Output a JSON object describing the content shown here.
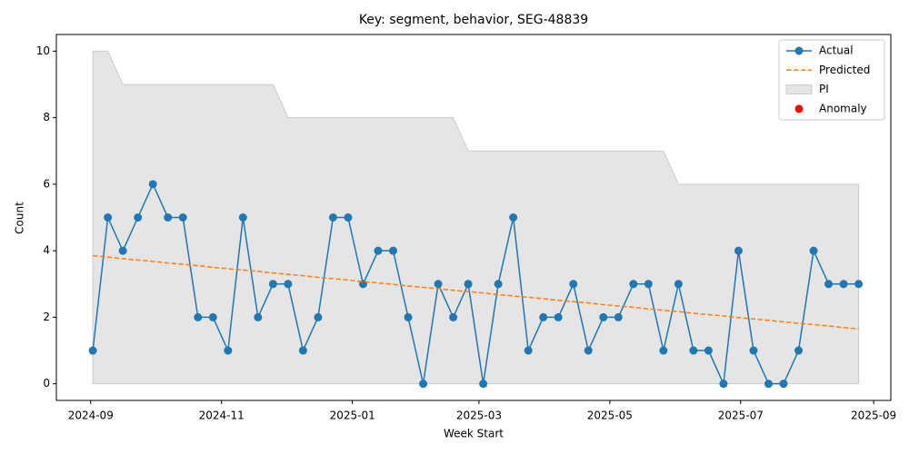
{
  "chart_data": {
    "type": "line",
    "title": "Key: segment, behavior, SEG-48839",
    "xlabel": "Week Start",
    "ylabel": "Count",
    "x": [
      "2024-09-02",
      "2024-09-09",
      "2024-09-16",
      "2024-09-23",
      "2024-09-30",
      "2024-10-07",
      "2024-10-14",
      "2024-10-21",
      "2024-10-28",
      "2024-11-04",
      "2024-11-11",
      "2024-11-18",
      "2024-11-25",
      "2024-12-02",
      "2024-12-09",
      "2024-12-16",
      "2024-12-23",
      "2024-12-30",
      "2025-01-06",
      "2025-01-13",
      "2025-01-20",
      "2025-01-27",
      "2025-02-03",
      "2025-02-10",
      "2025-02-17",
      "2025-02-24",
      "2025-03-03",
      "2025-03-10",
      "2025-03-17",
      "2025-03-24",
      "2025-03-31",
      "2025-04-07",
      "2025-04-14",
      "2025-04-21",
      "2025-04-28",
      "2025-05-05",
      "2025-05-12",
      "2025-05-19",
      "2025-05-26",
      "2025-06-02",
      "2025-06-09",
      "2025-06-16",
      "2025-06-23",
      "2025-06-30",
      "2025-07-07",
      "2025-07-14",
      "2025-07-21",
      "2025-07-28",
      "2025-08-04",
      "2025-08-11",
      "2025-08-18",
      "2025-08-25"
    ],
    "series": [
      {
        "name": "Actual",
        "color": "#1f77b4",
        "style": "solid",
        "marker": true,
        "values": [
          1,
          5,
          4,
          5,
          6,
          5,
          5,
          2,
          2,
          1,
          5,
          2,
          3,
          3,
          1,
          2,
          5,
          5,
          3,
          4,
          4,
          2,
          0,
          3,
          2,
          3,
          0,
          3,
          5,
          1,
          2,
          2,
          3,
          1,
          2,
          2,
          3,
          3,
          1,
          3,
          1,
          1,
          0,
          4,
          1,
          0,
          0,
          1,
          4,
          3,
          3,
          3
        ]
      },
      {
        "name": "Predicted",
        "color": "#ff7f0e",
        "style": "dashed",
        "marker": false,
        "values": [
          3.85,
          3.81,
          3.76,
          3.72,
          3.68,
          3.63,
          3.59,
          3.55,
          3.5,
          3.46,
          3.42,
          3.38,
          3.33,
          3.29,
          3.25,
          3.2,
          3.16,
          3.12,
          3.07,
          3.03,
          2.99,
          2.94,
          2.9,
          2.86,
          2.81,
          2.77,
          2.73,
          2.68,
          2.64,
          2.6,
          2.56,
          2.51,
          2.47,
          2.43,
          2.38,
          2.34,
          2.3,
          2.25,
          2.21,
          2.17,
          2.12,
          2.08,
          2.04,
          1.99,
          1.95,
          1.91,
          1.86,
          1.82,
          1.78,
          1.74,
          1.69,
          1.65
        ]
      }
    ],
    "band": {
      "name": "PI",
      "color": "#e5e5e5",
      "edge": "#cccccc",
      "lower": [
        0,
        0,
        0,
        0,
        0,
        0,
        0,
        0,
        0,
        0,
        0,
        0,
        0,
        0,
        0,
        0,
        0,
        0,
        0,
        0,
        0,
        0,
        0,
        0,
        0,
        0,
        0,
        0,
        0,
        0,
        0,
        0,
        0,
        0,
        0,
        0,
        0,
        0,
        0,
        0,
        0,
        0,
        0,
        0,
        0,
        0,
        0,
        0,
        0,
        0,
        0,
        0
      ],
      "upper": [
        10,
        10,
        9,
        9,
        9,
        9,
        9,
        9,
        9,
        9,
        9,
        9,
        9,
        8,
        8,
        8,
        8,
        8,
        8,
        8,
        8,
        8,
        8,
        8,
        8,
        7,
        7,
        7,
        7,
        7,
        7,
        7,
        7,
        7,
        7,
        7,
        7,
        7,
        7,
        6,
        6,
        6,
        6,
        6,
        6,
        6,
        6,
        6,
        6,
        6,
        6,
        6
      ]
    },
    "anomalies": {
      "name": "Anomaly",
      "color": "#ff0000",
      "values": [
        null,
        null,
        null,
        null,
        null,
        null,
        null,
        null,
        null,
        null,
        null,
        null,
        null,
        null,
        null,
        null,
        null,
        null,
        null,
        null,
        null,
        null,
        null,
        null,
        null,
        null,
        null,
        null,
        null,
        null,
        null,
        null,
        null,
        null,
        null,
        null,
        null,
        null,
        null,
        null,
        null,
        null,
        null,
        null,
        null,
        null,
        null,
        null,
        null,
        null,
        null,
        null
      ]
    },
    "xlim": [
      "2024-08-16",
      "2025-09-09"
    ],
    "xticks": [
      {
        "value": "2024-09-01",
        "label": "2024-09"
      },
      {
        "value": "2024-11-01",
        "label": "2024-11"
      },
      {
        "value": "2025-01-01",
        "label": "2025-01"
      },
      {
        "value": "2025-03-01",
        "label": "2025-03"
      },
      {
        "value": "2025-05-01",
        "label": "2025-05"
      },
      {
        "value": "2025-07-01",
        "label": "2025-07"
      },
      {
        "value": "2025-09-01",
        "label": "2025-09"
      }
    ],
    "ylim": [
      -0.5,
      10.5
    ],
    "yticks": [
      0,
      2,
      4,
      6,
      8,
      10
    ],
    "grid": false,
    "legend": "upper right"
  }
}
